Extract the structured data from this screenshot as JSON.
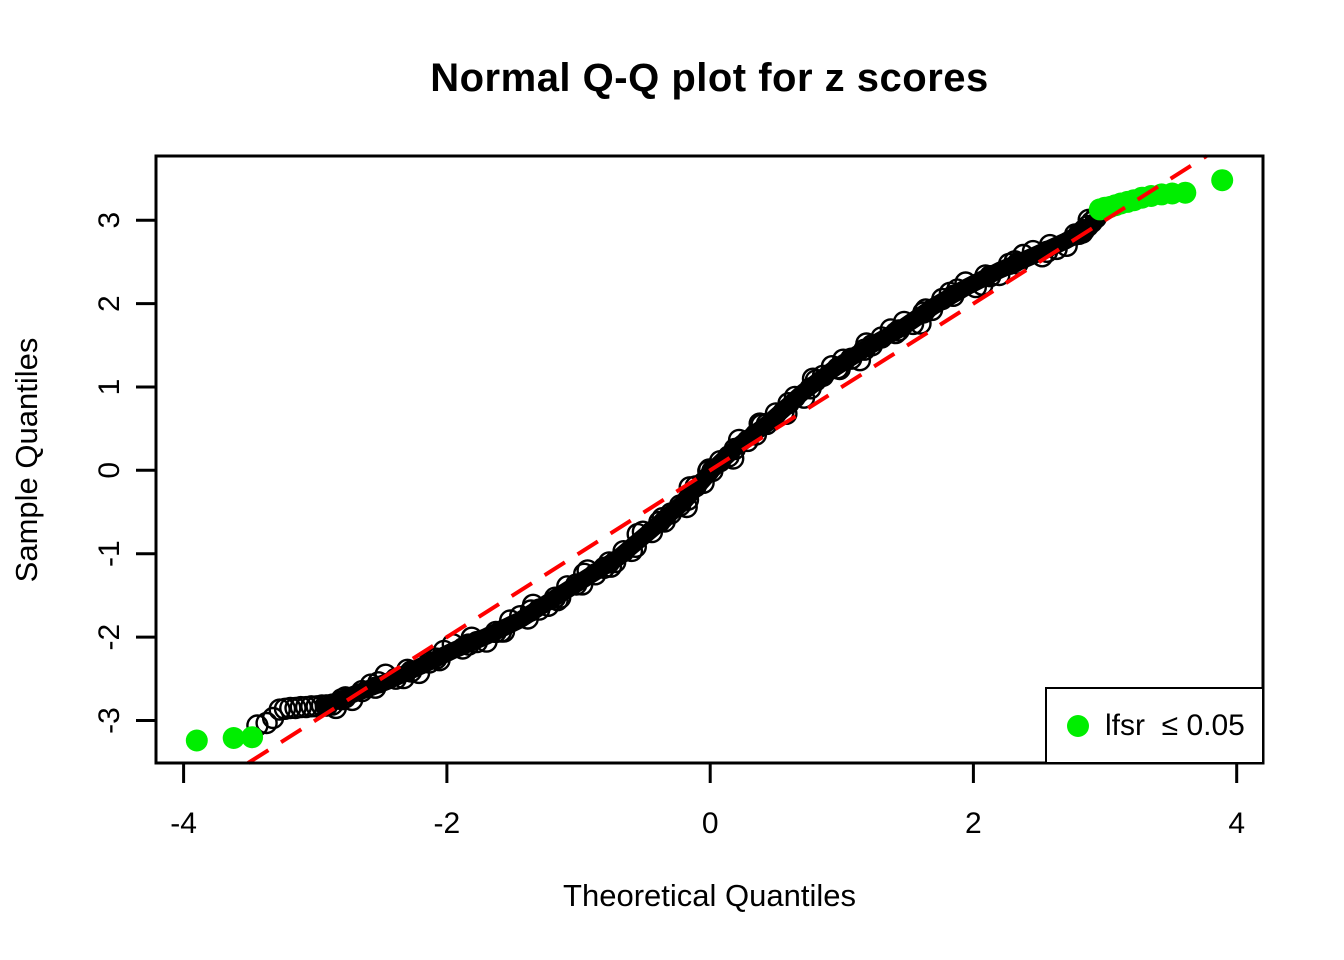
{
  "title": "Normal Q-Q plot for z scores",
  "x_axis": {
    "label": "Theoretical Quantiles",
    "ticks": [
      -4,
      -2,
      0,
      2,
      4
    ],
    "range": [
      -4.21,
      4.2
    ]
  },
  "y_axis": {
    "label": "Sample Quantiles",
    "ticks": [
      -3,
      -2,
      -1,
      0,
      1,
      2,
      3
    ],
    "range": [
      -3.51,
      3.77
    ]
  },
  "legend": {
    "label": "lfsr  ≤ 0.05",
    "marker_color": "#00EE00"
  },
  "colors": {
    "points": "#000000",
    "highlight": "#00EE00",
    "reference_line": "#FF0000",
    "background": "#FFFFFF"
  },
  "chart_data": {
    "type": "scatter",
    "title": "Normal Q-Q plot for z scores",
    "xlabel": "Theoretical Quantiles",
    "ylabel": "Sample Quantiles",
    "xlim": [
      -4.21,
      4.2
    ],
    "ylim": [
      -3.51,
      3.77
    ],
    "grid": false,
    "legend_position": "bottom-right",
    "reference_line": {
      "style": "dashed",
      "color": "#FF0000",
      "slope": 1,
      "intercept": 0
    },
    "qq_curve_midline": [
      [
        -2.92,
        -2.82
      ],
      [
        -2.7,
        -2.68
      ],
      [
        -2.45,
        -2.53
      ],
      [
        -2.2,
        -2.35
      ],
      [
        -1.95,
        -2.16
      ],
      [
        -1.7,
        -1.99
      ],
      [
        -1.45,
        -1.8
      ],
      [
        -1.2,
        -1.55
      ],
      [
        -0.95,
        -1.3
      ],
      [
        -0.7,
        -1.05
      ],
      [
        -0.45,
        -0.72
      ],
      [
        -0.2,
        -0.38
      ],
      [
        0.0,
        -0.02
      ],
      [
        0.2,
        0.28
      ],
      [
        0.45,
        0.58
      ],
      [
        0.7,
        0.93
      ],
      [
        0.95,
        1.23
      ],
      [
        1.2,
        1.48
      ],
      [
        1.45,
        1.7
      ],
      [
        1.7,
        1.97
      ],
      [
        1.95,
        2.2
      ],
      [
        2.2,
        2.4
      ],
      [
        2.45,
        2.57
      ],
      [
        2.7,
        2.75
      ],
      [
        2.85,
        2.88
      ],
      [
        2.93,
        3.0
      ]
    ],
    "open_circles_low": [
      [
        -3.44,
        -3.06
      ],
      [
        -3.37,
        -3.03
      ],
      [
        -3.32,
        -2.97
      ],
      [
        -3.27,
        -2.87
      ],
      [
        -3.23,
        -2.86
      ],
      [
        -3.19,
        -2.85
      ],
      [
        -3.15,
        -2.85
      ],
      [
        -3.11,
        -2.84
      ],
      [
        -3.07,
        -2.84
      ],
      [
        -3.03,
        -2.83
      ],
      [
        -2.99,
        -2.83
      ],
      [
        -2.95,
        -2.82
      ],
      [
        -2.91,
        -2.82
      ],
      [
        -2.87,
        -2.81
      ]
    ],
    "open_circles_high": [
      [
        2.84,
        2.88
      ],
      [
        2.87,
        2.93
      ],
      [
        2.9,
        2.98
      ],
      [
        2.93,
        3.03
      ]
    ],
    "highlighted_points_low": [
      [
        -3.9,
        -3.24
      ],
      [
        -3.62,
        -3.21
      ],
      [
        -3.48,
        -3.2
      ]
    ],
    "highlighted_points_high": [
      [
        2.96,
        3.13
      ],
      [
        3.0,
        3.15
      ],
      [
        3.04,
        3.16
      ],
      [
        3.08,
        3.18
      ],
      [
        3.12,
        3.2
      ],
      [
        3.17,
        3.22
      ],
      [
        3.22,
        3.24
      ],
      [
        3.28,
        3.27
      ],
      [
        3.35,
        3.29
      ],
      [
        3.43,
        3.31
      ],
      [
        3.51,
        3.32
      ],
      [
        3.61,
        3.33
      ],
      [
        3.89,
        3.48
      ]
    ],
    "marker_sizes": {
      "open_circle_radius": 10,
      "highlight_radius": 11
    }
  }
}
